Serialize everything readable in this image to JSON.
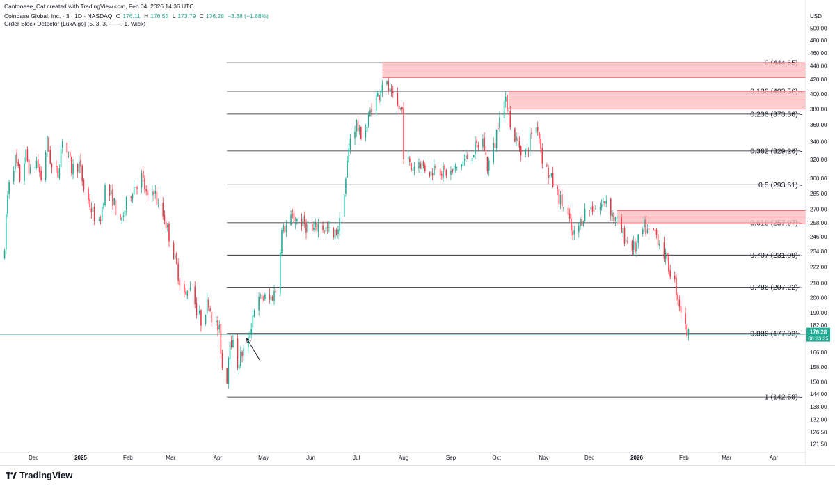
{
  "header": {
    "line1": "Cantonese_Cat created with TradingView.com, Feb 04, 2026 14:36 UTC",
    "symbol": "Coinbase Global, Inc. · 3 · 1D · NASDAQ",
    "o_label": "O",
    "o_val": "176.11",
    "h_label": "H",
    "h_val": "176.53",
    "l_label": "L",
    "l_val": "173.79",
    "c_label": "C",
    "c_val": "176.28",
    "chg": "−3.38 (−1.88%)",
    "indicator": "Order Block Detector [LuxAlgo] (5, 3, 3, ——, 1, Wick)"
  },
  "footer": {
    "brand": "TradingView"
  },
  "colors": {
    "up": "#22ab94",
    "down": "#f23645",
    "ob_fill": "#f9b9bd",
    "ob_stroke": "#f23645",
    "fib": "#131722",
    "price_tag": "#22ab94"
  },
  "chart_data": {
    "type": "candlestick",
    "currency": "USD",
    "y_scale": "log",
    "ylim": [
      118,
      525
    ],
    "y_ticks": [
      "500.00",
      "480.00",
      "460.00",
      "440.00",
      "420.00",
      "400.00",
      "380.00",
      "360.00",
      "340.00",
      "320.00",
      "300.00",
      "285.00",
      "270.00",
      "258.00",
      "246.00",
      "234.00",
      "222.00",
      "210.00",
      "200.00",
      "190.00",
      "182.00",
      "174.00",
      "166.00",
      "158.00",
      "150.00",
      "144.00",
      "138.00",
      "132.00",
      "126.50",
      "121.50"
    ],
    "y_tick_values": [
      500,
      480,
      460,
      440,
      420,
      400,
      380,
      360,
      340,
      320,
      300,
      285,
      270,
      258,
      246,
      234,
      222,
      210,
      200,
      190,
      182,
      174,
      166,
      158,
      150,
      144,
      138,
      132,
      126.5,
      121.5
    ],
    "x_ticks": [
      {
        "label": "Dec",
        "date": "2024-12-01"
      },
      {
        "label": "2025",
        "date": "2025-01-01"
      },
      {
        "label": "Feb",
        "date": "2025-02-01"
      },
      {
        "label": "Mar",
        "date": "2025-03-01"
      },
      {
        "label": "Apr",
        "date": "2025-04-01"
      },
      {
        "label": "May",
        "date": "2025-05-01"
      },
      {
        "label": "Jun",
        "date": "2025-06-01"
      },
      {
        "label": "Jul",
        "date": "2025-07-01"
      },
      {
        "label": "Aug",
        "date": "2025-08-01"
      },
      {
        "label": "Sep",
        "date": "2025-09-01"
      },
      {
        "label": "Oct",
        "date": "2025-10-01"
      },
      {
        "label": "Nov",
        "date": "2025-11-01"
      },
      {
        "label": "Dec",
        "date": "2025-12-01"
      },
      {
        "label": "2026",
        "date": "2026-01-01"
      },
      {
        "label": "Feb",
        "date": "2026-02-01"
      },
      {
        "label": "Mar",
        "date": "2026-03-01"
      },
      {
        "label": "Apr",
        "date": "2026-04-01"
      }
    ],
    "x_range": [
      "2024-11-09",
      "2026-04-22"
    ],
    "last_price": "176.28",
    "countdown": "06:23:35",
    "fib_start_date": "2025-04-07",
    "fib_levels": [
      {
        "label": "0 (444.65)",
        "value": 444.65
      },
      {
        "label": "0.136 (403.56)",
        "value": 403.56
      },
      {
        "label": "0.236 (373.36)",
        "value": 373.36
      },
      {
        "label": "0.382 (329.26)",
        "value": 329.26
      },
      {
        "label": "0.5 (293.61)",
        "value": 293.61
      },
      {
        "label": "0.618 (257.97)",
        "value": 257.97
      },
      {
        "label": "0.707 (231.09)",
        "value": 231.09
      },
      {
        "label": "0.786 (207.22)",
        "value": 207.22
      },
      {
        "label": "0.886 (177.02)",
        "value": 177.02
      },
      {
        "label": "1 (142.58)",
        "value": 142.58
      }
    ],
    "order_blocks": [
      {
        "start": "2025-07-18",
        "top": 444.65,
        "bottom": 423.0
      },
      {
        "start": "2025-10-09",
        "top": 403.56,
        "bottom": 380.0
      },
      {
        "start": "2025-12-19",
        "top": 269.0,
        "bottom": 257.0
      }
    ],
    "arrow": {
      "from": [
        "2025-04-29",
        161.0
      ],
      "to": [
        "2025-04-20",
        174.0
      ]
    },
    "anchors": [
      [
        "2024-11-12",
        230
      ],
      [
        "2024-11-13",
        265
      ],
      [
        "2024-11-15",
        300
      ],
      [
        "2024-11-19",
        320
      ],
      [
        "2024-11-22",
        300
      ],
      [
        "2024-11-26",
        325
      ],
      [
        "2024-11-29",
        305
      ],
      [
        "2024-12-03",
        318
      ],
      [
        "2024-12-06",
        300
      ],
      [
        "2024-12-10",
        340
      ],
      [
        "2024-12-13",
        310
      ],
      [
        "2024-12-17",
        305
      ],
      [
        "2024-12-20",
        345
      ],
      [
        "2024-12-26",
        310
      ],
      [
        "2024-12-31",
        315
      ],
      [
        "2025-01-03",
        290
      ],
      [
        "2025-01-08",
        270
      ],
      [
        "2025-01-13",
        255
      ],
      [
        "2025-01-17",
        290
      ],
      [
        "2025-01-22",
        280
      ],
      [
        "2025-01-27",
        255
      ],
      [
        "2025-01-31",
        275
      ],
      [
        "2025-02-04",
        290
      ],
      [
        "2025-02-10",
        302
      ],
      [
        "2025-02-14",
        278
      ],
      [
        "2025-02-18",
        290
      ],
      [
        "2025-02-21",
        272
      ],
      [
        "2025-02-25",
        262
      ],
      [
        "2025-03-03",
        232
      ],
      [
        "2025-03-07",
        212
      ],
      [
        "2025-03-11",
        200
      ],
      [
        "2025-03-14",
        210
      ],
      [
        "2025-03-18",
        192
      ],
      [
        "2025-03-21",
        185
      ],
      [
        "2025-03-26",
        198
      ],
      [
        "2025-03-28",
        188
      ],
      [
        "2025-04-02",
        178
      ],
      [
        "2025-04-04",
        158
      ],
      [
        "2025-04-07",
        152
      ],
      [
        "2025-04-09",
        176
      ],
      [
        "2025-04-14",
        160
      ],
      [
        "2025-04-21",
        172
      ],
      [
        "2025-04-25",
        194
      ],
      [
        "2025-04-30",
        200
      ],
      [
        "2025-05-05",
        198
      ],
      [
        "2025-05-09",
        205
      ],
      [
        "2025-05-13",
        250
      ],
      [
        "2025-05-20",
        262
      ],
      [
        "2025-05-27",
        258
      ],
      [
        "2025-06-02",
        250
      ],
      [
        "2025-06-06",
        256
      ],
      [
        "2025-06-12",
        252
      ],
      [
        "2025-06-16",
        244
      ],
      [
        "2025-06-20",
        258
      ],
      [
        "2025-06-24",
        300
      ],
      [
        "2025-06-27",
        345
      ],
      [
        "2025-07-01",
        362
      ],
      [
        "2025-07-03",
        348
      ],
      [
        "2025-07-08",
        358
      ],
      [
        "2025-07-11",
        385
      ],
      [
        "2025-07-16",
        400
      ],
      [
        "2025-07-18",
        418
      ],
      [
        "2025-07-21",
        410
      ],
      [
        "2025-07-24",
        395
      ],
      [
        "2025-07-28",
        382
      ],
      [
        "2025-07-31",
        378
      ],
      [
        "2025-08-01",
        328
      ],
      [
        "2025-08-06",
        310
      ],
      [
        "2025-08-11",
        318
      ],
      [
        "2025-08-14",
        312
      ],
      [
        "2025-08-19",
        305
      ],
      [
        "2025-08-22",
        316
      ],
      [
        "2025-08-27",
        306
      ],
      [
        "2025-09-02",
        306
      ],
      [
        "2025-09-08",
        316
      ],
      [
        "2025-09-12",
        322
      ],
      [
        "2025-09-17",
        332
      ],
      [
        "2025-09-22",
        342
      ],
      [
        "2025-09-25",
        312
      ],
      [
        "2025-09-30",
        338
      ],
      [
        "2025-10-03",
        378
      ],
      [
        "2025-10-06",
        388
      ],
      [
        "2025-10-09",
        385
      ],
      [
        "2025-10-10",
        355
      ],
      [
        "2025-10-14",
        342
      ],
      [
        "2025-10-17",
        332
      ],
      [
        "2025-10-21",
        328
      ],
      [
        "2025-10-24",
        352
      ],
      [
        "2025-10-28",
        358
      ],
      [
        "2025-10-31",
        322
      ],
      [
        "2025-11-04",
        305
      ],
      [
        "2025-11-07",
        295
      ],
      [
        "2025-11-12",
        278
      ],
      [
        "2025-11-17",
        262
      ],
      [
        "2025-11-20",
        245
      ],
      [
        "2025-11-24",
        255
      ],
      [
        "2025-11-28",
        268
      ],
      [
        "2025-12-03",
        272
      ],
      [
        "2025-12-08",
        272
      ],
      [
        "2025-12-12",
        280
      ],
      [
        "2025-12-17",
        262
      ],
      [
        "2025-12-22",
        250
      ],
      [
        "2025-12-26",
        242
      ],
      [
        "2025-12-31",
        236
      ],
      [
        "2026-01-06",
        254
      ],
      [
        "2026-01-09",
        248
      ],
      [
        "2026-01-13",
        250
      ],
      [
        "2026-01-16",
        242
      ],
      [
        "2026-01-21",
        225
      ],
      [
        "2026-01-26",
        210
      ],
      [
        "2026-01-29",
        196
      ],
      [
        "2026-02-02",
        180
      ],
      [
        "2026-02-04",
        176.28
      ]
    ]
  }
}
